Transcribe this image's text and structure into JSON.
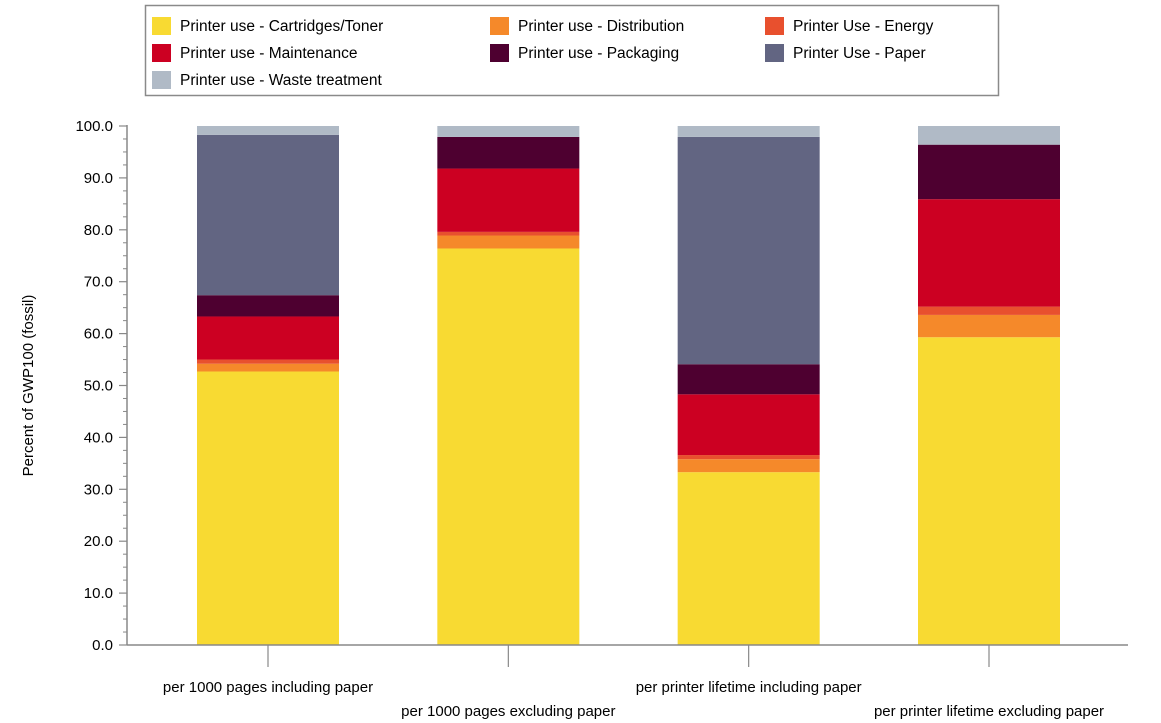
{
  "chart_data": {
    "type": "bar",
    "stacked": true,
    "title": "",
    "xlabel": "",
    "ylabel": "Percent of GWP100 (fossil)",
    "ylim": [
      0,
      100
    ],
    "yticks": [
      "0.0",
      "10.0",
      "20.0",
      "30.0",
      "40.0",
      "50.0",
      "60.0",
      "70.0",
      "80.0",
      "90.0",
      "100.0"
    ],
    "grid": false,
    "legend_position": "top",
    "categories": [
      "per 1000 pages including paper",
      "per 1000 pages excluding paper",
      "per printer lifetime including paper",
      "per printer lifetime excluding paper"
    ],
    "series": [
      {
        "name": "Printer use - Cartridges/Toner",
        "color": "#f8da32",
        "values": [
          52.7,
          76.4,
          33.3,
          59.3
        ]
      },
      {
        "name": "Printer use - Distribution",
        "color": "#f5892a",
        "values": [
          1.5,
          2.5,
          2.5,
          4.3
        ]
      },
      {
        "name": "Printer Use - Energy",
        "color": "#e8502e",
        "values": [
          0.8,
          0.7,
          0.8,
          1.6
        ]
      },
      {
        "name": "Printer use - Maintenance",
        "color": "#cc0022",
        "values": [
          8.3,
          12.2,
          11.7,
          20.7
        ]
      },
      {
        "name": "Printer use - Packaging",
        "color": "#4e0030",
        "values": [
          4.1,
          6.1,
          5.8,
          10.5
        ]
      },
      {
        "name": "Printer Use - Paper",
        "color": "#626582",
        "values": [
          30.9,
          0.0,
          43.8,
          0.0
        ]
      },
      {
        "name": "Printer use - Waste treatment",
        "color": "#b0bac6",
        "values": [
          1.7,
          2.1,
          2.1,
          3.6
        ]
      }
    ]
  }
}
